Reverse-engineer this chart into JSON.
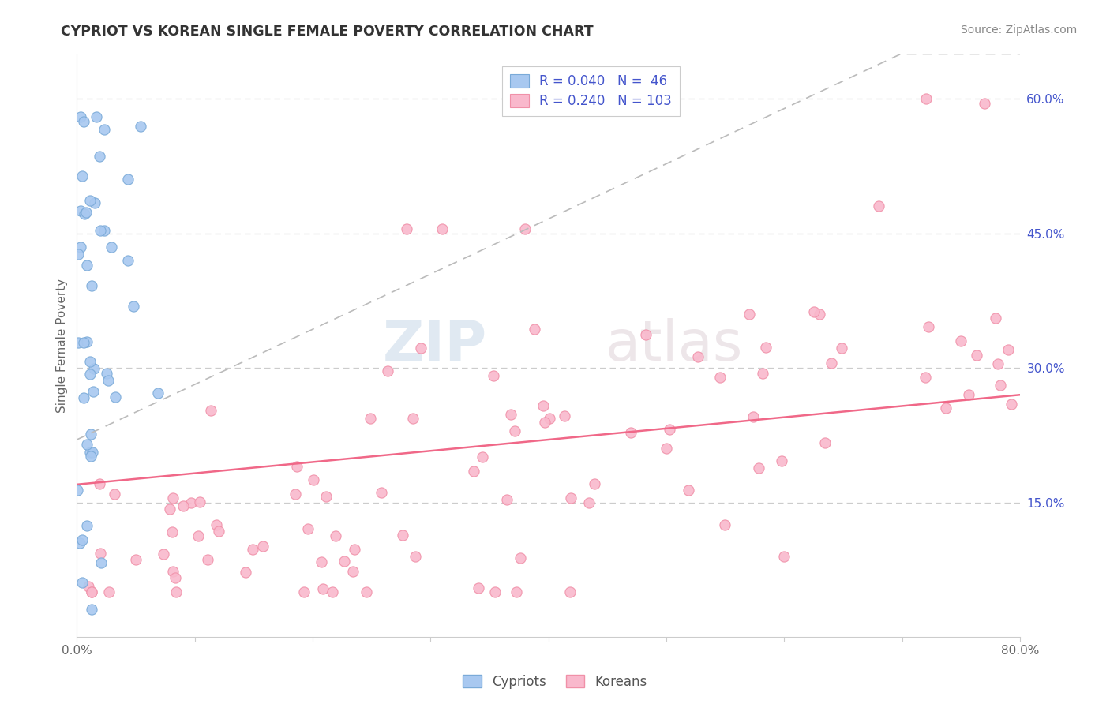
{
  "title": "CYPRIOT VS KOREAN SINGLE FEMALE POVERTY CORRELATION CHART",
  "source": "Source: ZipAtlas.com",
  "ylabel": "Single Female Poverty",
  "xlim": [
    0.0,
    0.8
  ],
  "ylim": [
    0.0,
    0.65
  ],
  "y_tick_vals_right": [
    0.15,
    0.3,
    0.45,
    0.6
  ],
  "y_tick_labels_right": [
    "15.0%",
    "30.0%",
    "45.0%",
    "60.0%"
  ],
  "cypriot_scatter_color": "#a8c8f0",
  "cypriot_scatter_edge": "#7aaad8",
  "korean_scatter_color": "#f9b8cc",
  "korean_scatter_edge": "#f090a8",
  "cypriot_trend_color": "#9999dd",
  "korean_trend_color": "#f06888",
  "grid_color": "#cccccc",
  "R_cypriot": 0.04,
  "N_cypriot": 46,
  "R_korean": 0.24,
  "N_korean": 103,
  "legend_label_cypriot": "Cypriots",
  "legend_label_korean": "Koreans",
  "watermark_zip": "ZIP",
  "watermark_atlas": "atlas",
  "title_color": "#333333",
  "source_color": "#888888",
  "tick_color_right": "#4455cc",
  "label_color": "#666666"
}
